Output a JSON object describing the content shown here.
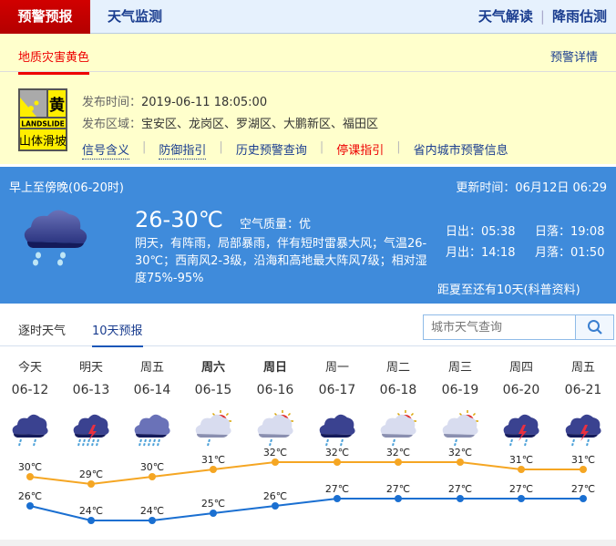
{
  "nav": {
    "tabs": [
      "预警预报",
      "天气监测"
    ],
    "right": [
      "天气解读",
      "降雨估测"
    ]
  },
  "warning": {
    "tab": "地质灾害黄色",
    "detail_link": "预警详情",
    "signal": {
      "level": "黄",
      "en": "LANDSLIDE",
      "cn": "山体滑坡",
      "color": "#ffee00"
    },
    "time_label": "发布时间：",
    "time": "2019-06-11 18:05:00",
    "area_label": "发布区域：",
    "area": "宝安区、龙岗区、罗湖区、大鹏新区、福田区",
    "links": [
      "信号含义",
      "防御指引",
      "历史预警查询",
      "停课指引",
      "省内城市预警信息"
    ]
  },
  "today": {
    "period": "早上至傍晚(06-20时)",
    "update": "更新时间：06月12日 06:29",
    "temp": "26-30℃",
    "aqi_label": "空气质量：",
    "aqi": "优",
    "desc": "阴天，有阵雨，局部暴雨，伴有短时雷暴大风；气温26-30℃；西南风2-3级，沿海和高地最大阵风7级；相对湿度75%-95%",
    "sunrise": "日出：05:38",
    "sunset": "日落：19:08",
    "moonrise": "月出：14:18",
    "moonset": "月落：01:50",
    "solstice": "距夏至还有10天(科普资料)",
    "icon": "cloud-rain-icon"
  },
  "forecast_tabs": [
    "逐时天气",
    "10天预报"
  ],
  "search": {
    "placeholder": "城市天气查询"
  },
  "days": [
    {
      "day": "今天",
      "date": "06-12",
      "icon": "rain",
      "high": "30℃",
      "low": "26℃"
    },
    {
      "day": "明天",
      "date": "06-13",
      "icon": "thunder-heavy-rain",
      "high": "29℃",
      "low": "24℃"
    },
    {
      "day": "周五",
      "date": "06-14",
      "icon": "heavy-rain",
      "high": "30℃",
      "low": "24℃"
    },
    {
      "day": "周六",
      "date": "06-15",
      "icon": "sun-cloud-shower",
      "high": "31℃",
      "low": "25℃",
      "bold": true
    },
    {
      "day": "周日",
      "date": "06-16",
      "icon": "sun-cloud-shower",
      "high": "32℃",
      "low": "26℃",
      "bold": true
    },
    {
      "day": "周一",
      "date": "06-17",
      "icon": "rain",
      "high": "32℃",
      "low": "27℃"
    },
    {
      "day": "周二",
      "date": "06-18",
      "icon": "sun-cloud-shower",
      "high": "32℃",
      "low": "27℃"
    },
    {
      "day": "周三",
      "date": "06-19",
      "icon": "sun-cloud-shower",
      "high": "32℃",
      "low": "27℃"
    },
    {
      "day": "周四",
      "date": "06-20",
      "icon": "thunder-rain",
      "high": "31℃",
      "low": "27℃"
    },
    {
      "day": "周五",
      "date": "06-21",
      "icon": "thunder-rain",
      "high": "31℃",
      "low": "27℃"
    }
  ],
  "chart_data": {
    "type": "line",
    "categories": [
      "06-12",
      "06-13",
      "06-14",
      "06-15",
      "06-16",
      "06-17",
      "06-18",
      "06-19",
      "06-20",
      "06-21"
    ],
    "series": [
      {
        "values": [
          30,
          29,
          30,
          31,
          32,
          32,
          32,
          32,
          31,
          31
        ],
        "color": "#f5a623"
      },
      {
        "values": [
          26,
          24,
          24,
          25,
          26,
          27,
          27,
          27,
          27,
          27
        ],
        "color": "#1a6fd1"
      }
    ]
  }
}
